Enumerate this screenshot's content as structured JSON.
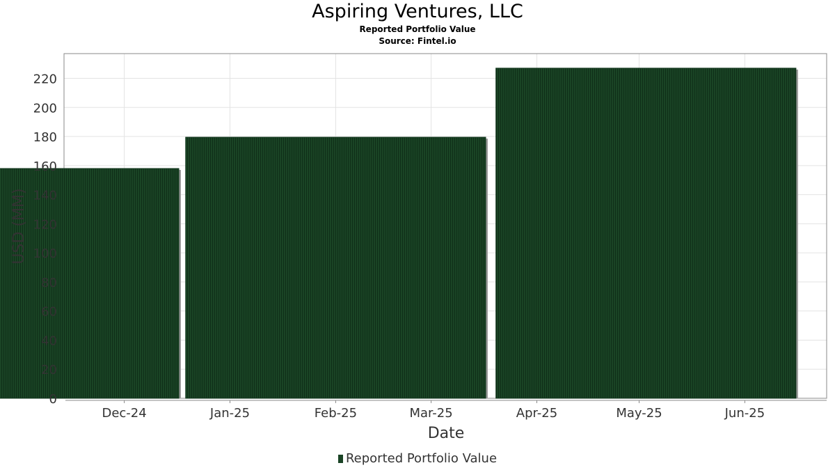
{
  "header": {
    "title": "Aspiring Ventures, LLC",
    "subtitle": "Reported Portfolio Value",
    "source": "Source: Fintel.io"
  },
  "chart_data": {
    "type": "bar",
    "title": "Aspiring Ventures, LLC",
    "subtitle": "Reported Portfolio Value",
    "xlabel": "Date",
    "ylabel": "USD (MM)",
    "x_ticks": [
      "Dec-24",
      "Jan-25",
      "Feb-25",
      "Mar-25",
      "Apr-25",
      "May-25",
      "Jun-25"
    ],
    "y_ticks": [
      0,
      20,
      40,
      60,
      80,
      100,
      120,
      140,
      160,
      180,
      200,
      220
    ],
    "ylim": [
      0,
      237
    ],
    "grid": true,
    "legend_position": "bottom",
    "series": [
      {
        "name": "Reported Portfolio Value",
        "color": "#1a4425",
        "points": [
          {
            "x": "2024-12-31",
            "y": 158
          },
          {
            "x": "2025-03-31",
            "y": 179.5
          },
          {
            "x": "2025-06-30",
            "y": 227
          }
        ]
      }
    ]
  }
}
